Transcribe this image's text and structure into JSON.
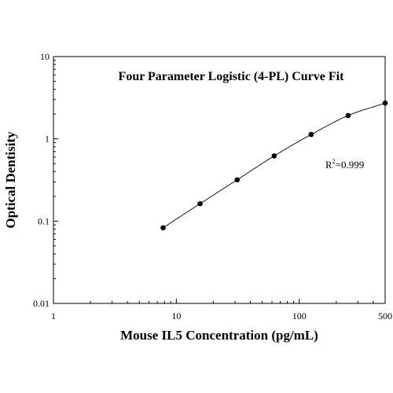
{
  "chart_data": {
    "type": "scatter",
    "title": "Four Parameter Logistic (4-PL) Curve Fit",
    "xlabel": "Mouse IL5 Concentration (pg/mL)",
    "ylabel": "Optical Dentisity",
    "x_scale": "log",
    "y_scale": "log",
    "xlim": [
      1,
      500
    ],
    "ylim": [
      0.01,
      10
    ],
    "x_ticks": [
      {
        "value": 1,
        "label": "1"
      },
      {
        "value": 10,
        "label": "10"
      },
      {
        "value": 100,
        "label": "100"
      },
      {
        "value": 500,
        "label": "500"
      }
    ],
    "y_ticks": [
      {
        "value": 0.01,
        "label": "0.01"
      },
      {
        "value": 0.1,
        "label": "0.1"
      },
      {
        "value": 1,
        "label": "1"
      },
      {
        "value": 10,
        "label": "10"
      }
    ],
    "grid": false,
    "series": [
      {
        "x": [
          7.8,
          15.6,
          31.25,
          62.5,
          125,
          250,
          500
        ],
        "y": [
          0.083,
          0.163,
          0.318,
          0.62,
          1.13,
          1.92,
          2.72
        ]
      }
    ],
    "fit_curve": "4-PL",
    "annotation": {
      "r_label": "R",
      "r_sup": "2",
      "r_value": "=0.999"
    },
    "colors": {
      "points": "#000000",
      "curve": "#000000",
      "axes": "#000000"
    }
  }
}
